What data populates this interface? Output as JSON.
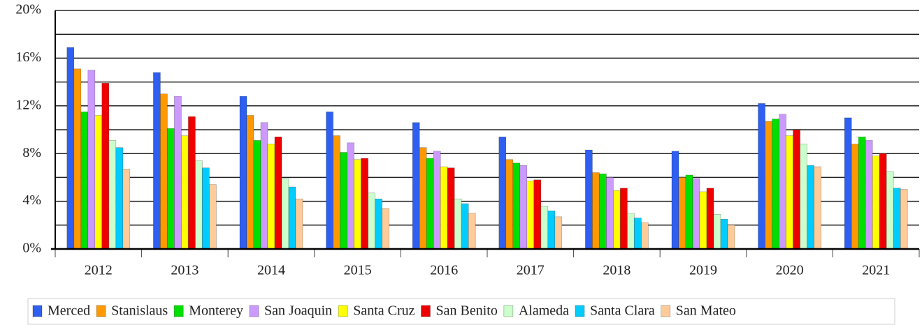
{
  "chart_data": {
    "type": "bar",
    "categories": [
      "2012",
      "2013",
      "2014",
      "2015",
      "2016",
      "2017",
      "2018",
      "2019",
      "2020",
      "2021"
    ],
    "series": [
      {
        "name": "Merced",
        "color": "#2e5ff0",
        "values": [
          16.9,
          14.8,
          12.8,
          11.5,
          10.6,
          9.4,
          8.3,
          8.2,
          12.2,
          11.0
        ]
      },
      {
        "name": "Stanislaus",
        "color": "#ff9900",
        "values": [
          15.1,
          13.0,
          11.2,
          9.5,
          8.5,
          7.5,
          6.4,
          6.0,
          10.7,
          8.8
        ]
      },
      {
        "name": "Monterey",
        "color": "#00e000",
        "values": [
          11.5,
          10.1,
          9.1,
          8.1,
          7.6,
          7.2,
          6.3,
          6.2,
          10.9,
          9.4
        ]
      },
      {
        "name": "San Joaquin",
        "color": "#cc99ff",
        "values": [
          15.0,
          12.8,
          10.6,
          8.9,
          8.2,
          7.0,
          6.0,
          5.9,
          11.3,
          9.1
        ]
      },
      {
        "name": "Santa Cruz",
        "color": "#ffff00",
        "values": [
          11.2,
          9.5,
          8.8,
          7.5,
          6.9,
          5.7,
          4.9,
          4.8,
          9.5,
          7.8
        ]
      },
      {
        "name": "San Benito",
        "color": "#ee0000",
        "values": [
          13.9,
          11.1,
          9.4,
          7.6,
          6.8,
          5.8,
          5.1,
          5.1,
          10.0,
          8.0
        ]
      },
      {
        "name": "Alameda",
        "color": "#ccffcc",
        "values": [
          9.1,
          7.4,
          5.9,
          4.7,
          4.2,
          3.6,
          3.0,
          2.9,
          8.8,
          6.5
        ]
      },
      {
        "name": "Santa Clara",
        "color": "#00ccff",
        "values": [
          8.5,
          6.8,
          5.2,
          4.2,
          3.8,
          3.2,
          2.6,
          2.5,
          7.0,
          5.1
        ]
      },
      {
        "name": "San Mateo",
        "color": "#ffcc99",
        "values": [
          6.7,
          5.4,
          4.2,
          3.4,
          3.0,
          2.7,
          2.2,
          2.0,
          6.9,
          5.0
        ]
      }
    ],
    "ylim": [
      0,
      20
    ],
    "yticks": [
      {
        "value": 0,
        "label": "0%"
      },
      {
        "value": 4,
        "label": "4%"
      },
      {
        "value": 8,
        "label": "8%"
      },
      {
        "value": 12,
        "label": "12%"
      },
      {
        "value": 16,
        "label": "16%"
      },
      {
        "value": 20,
        "label": "20%"
      }
    ],
    "minor_yticks": [
      2,
      6,
      10,
      14,
      18
    ],
    "grid": true,
    "legend": "bottom"
  }
}
